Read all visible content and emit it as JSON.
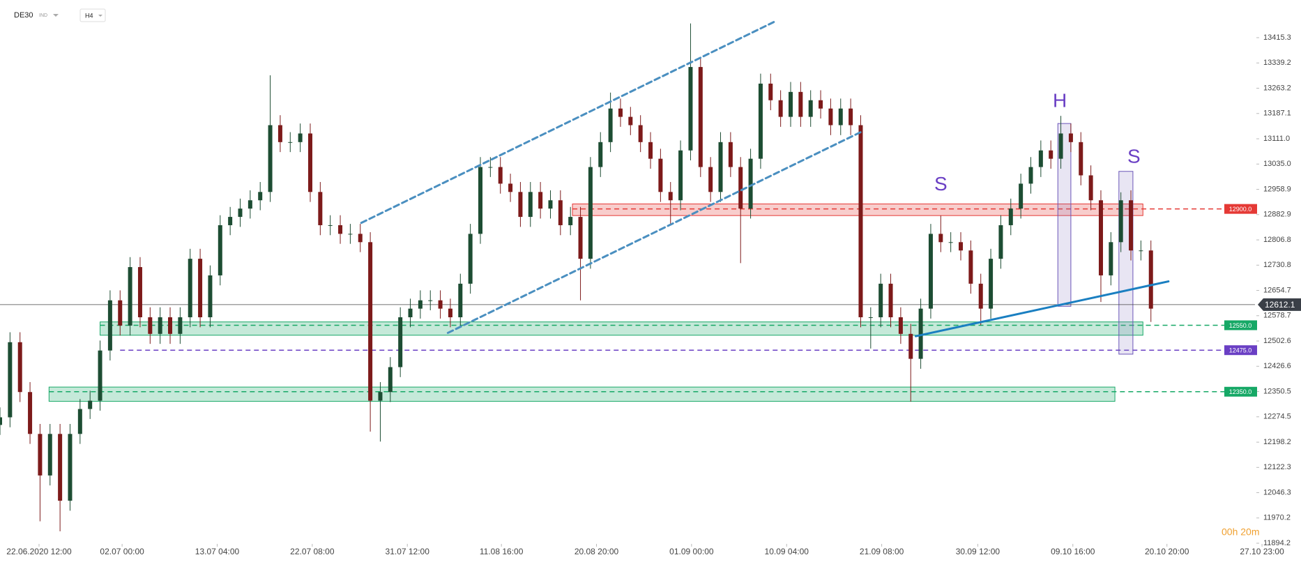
{
  "header": {
    "symbol": "DE30",
    "type": "IND",
    "timeframe": "H4",
    "timer": "00h 20m"
  },
  "chart_data": {
    "type": "candlestick",
    "xlim": [
      0,
      127
    ],
    "ylim": [
      11892.2,
      13528.6
    ],
    "xticks": [
      {
        "value": 3.9,
        "label": "22.06.2020 12:00"
      },
      {
        "value": 12.2,
        "label": "02.07 00:00"
      },
      {
        "value": 21.7,
        "label": "13.07 04:00"
      },
      {
        "value": 31.2,
        "label": "22.07 08:00"
      },
      {
        "value": 40.7,
        "label": "31.07 12:00"
      },
      {
        "value": 50.1,
        "label": "11.08 16:00"
      },
      {
        "value": 59.6,
        "label": "20.08 20:00"
      },
      {
        "value": 69.1,
        "label": "01.09 00:00"
      },
      {
        "value": 78.6,
        "label": "10.09 04:00"
      },
      {
        "value": 88.1,
        "label": "21.09 08:00"
      },
      {
        "value": 97.7,
        "label": "30.09 12:00"
      },
      {
        "value": 107.2,
        "label": "09.10 16:00"
      },
      {
        "value": 116.6,
        "label": "20.10 20:00"
      },
      {
        "value": 126.1,
        "label": "27.10 23:00"
      }
    ],
    "yticks": [
      13415.3,
      13339.2,
      13263.2,
      13187.1,
      {
        "value": 13111,
        "label": "13111.0"
      },
      {
        "value": 13035,
        "label": "13035.0"
      },
      12958.9,
      12882.9,
      12806.8,
      12730.8,
      12654.7,
      12578.7,
      12502.6,
      12426.6,
      12350.5,
      12274.5,
      12198.2,
      12122.3,
      12046.3,
      11970.2,
      11894.2
    ],
    "open": [
      12250,
      12273,
      12499,
      12349,
      12223,
      12098,
      12223,
      12022,
      12223,
      12298,
      12323,
      12474,
      12625,
      12549,
      12725,
      12574,
      12524,
      12574,
      12524,
      12574,
      12750,
      12574,
      12700,
      12851,
      12876,
      12901,
      12926,
      12951,
      13152,
      13101,
      13101,
      13127,
      12951,
      12851,
      12851,
      12825,
      12825,
      12800,
      12323,
      12349,
      12424,
      12574,
      12600,
      12625,
      12625,
      12600,
      12574,
      12675,
      12825,
      13026,
      13026,
      12976,
      12951,
      12876,
      12951,
      12901,
      12926,
      12851,
      12876,
      12750,
      13026,
      13101,
      13202,
      13177,
      13152,
      13101,
      13051,
      12951,
      12926,
      13076,
      13327,
      13026,
      12951,
      13101,
      13026,
      12901,
      13051,
      13277,
      13227,
      13177,
      13252,
      13177,
      13227,
      13202,
      13152,
      13202,
      13152,
      12574,
      12574,
      12675,
      12574,
      12524,
      12449,
      12600,
      12825,
      12800,
      12800,
      12775,
      12675,
      12600,
      12750,
      12851,
      12901,
      12976,
      13026,
      13076,
      13051,
      13127,
      13101,
      13001,
      12926,
      12700,
      12800,
      12926,
      12775,
      12775
    ],
    "high": [
      12303,
      12529,
      12529,
      12379,
      12253,
      12253,
      12253,
      12253,
      12328,
      12353,
      12504,
      12655,
      12655,
      12755,
      12755,
      12604,
      12604,
      12604,
      12604,
      12780,
      12780,
      12730,
      12881,
      12906,
      12931,
      12956,
      12981,
      13302,
      13182,
      13131,
      13157,
      13157,
      12981,
      12881,
      12881,
      12855,
      12855,
      12830,
      12379,
      12454,
      12604,
      12630,
      12655,
      12655,
      12655,
      12630,
      12705,
      12855,
      13056,
      13056,
      13056,
      13006,
      12981,
      12981,
      12981,
      12956,
      12956,
      12906,
      12906,
      13056,
      13131,
      13250,
      13232,
      13207,
      13182,
      13131,
      13081,
      12981,
      13106,
      13458,
      13357,
      13056,
      13131,
      13131,
      13056,
      13081,
      13307,
      13307,
      13257,
      13282,
      13282,
      13257,
      13257,
      13232,
      13232,
      13232,
      13182,
      12604,
      12705,
      12705,
      12604,
      12554,
      12630,
      12855,
      12880,
      12830,
      12830,
      12805,
      12705,
      12780,
      12881,
      12931,
      13006,
      13056,
      13106,
      13106,
      13180,
      13157,
      13131,
      13031,
      12956,
      12830,
      12950,
      12956,
      12805,
      12805
    ],
    "low": [
      12220,
      12243,
      12319,
      12193,
      11960,
      12068,
      11930,
      11992,
      12193,
      12268,
      12293,
      12444,
      12519,
      12519,
      12544,
      12494,
      12494,
      12494,
      12494,
      12544,
      12544,
      12544,
      12670,
      12821,
      12846,
      12871,
      12896,
      12921,
      13071,
      13071,
      13071,
      12921,
      12821,
      12821,
      12795,
      12795,
      12770,
      12230,
      12200,
      12319,
      12394,
      12544,
      12570,
      12595,
      12570,
      12544,
      12544,
      12645,
      12795,
      12996,
      12946,
      12921,
      12846,
      12846,
      12871,
      12871,
      12821,
      12821,
      12625,
      12720,
      12996,
      13071,
      13147,
      13122,
      13071,
      13021,
      12921,
      12850,
      12896,
      13046,
      12996,
      12921,
      12921,
      12996,
      12737,
      12871,
      13021,
      13197,
      13147,
      13147,
      13147,
      13147,
      13172,
      13122,
      13122,
      13122,
      12544,
      12480,
      12544,
      12544,
      12494,
      12320,
      12419,
      12570,
      12770,
      12770,
      12745,
      12645,
      12550,
      12570,
      12720,
      12821,
      12871,
      12946,
      12996,
      13021,
      13021,
      13071,
      12971,
      12896,
      12620,
      12670,
      12770,
      12745,
      12745,
      12560
    ],
    "close": [
      12273,
      12499,
      12349,
      12223,
      12098,
      12223,
      12022,
      12223,
      12298,
      12323,
      12474,
      12625,
      12549,
      12725,
      12574,
      12524,
      12574,
      12524,
      12574,
      12750,
      12574,
      12700,
      12851,
      12876,
      12901,
      12926,
      12951,
      13152,
      13101,
      13101,
      13127,
      12951,
      12851,
      12851,
      12825,
      12825,
      12800,
      12323,
      12349,
      12424,
      12574,
      12600,
      12625,
      12625,
      12600,
      12574,
      12675,
      12825,
      13026,
      13026,
      12976,
      12951,
      12876,
      12951,
      12901,
      12926,
      12851,
      12876,
      12750,
      13026,
      13101,
      13202,
      13177,
      13152,
      13101,
      13051,
      12951,
      12926,
      13076,
      13327,
      13026,
      12951,
      13101,
      13026,
      12901,
      13051,
      13277,
      13227,
      13177,
      13252,
      13177,
      13227,
      13202,
      13152,
      13202,
      13152,
      12574,
      12574,
      12675,
      12574,
      12524,
      12449,
      12600,
      12825,
      12800,
      12800,
      12775,
      12675,
      12600,
      12750,
      12851,
      12901,
      12976,
      13026,
      13076,
      13051,
      13127,
      13101,
      13001,
      12926,
      12700,
      12800,
      12926,
      12775,
      12775,
      12600
    ],
    "colors": {
      "up": "#1d4d33",
      "down": "#7d1a1a"
    },
    "last_price": 12612.1,
    "levels": [
      {
        "value": 12900,
        "label": "12900.0",
        "color": "#e53935",
        "zone": [
          12880,
          12915
        ],
        "from": 57.2,
        "to": 114.2
      },
      {
        "value": 12550,
        "label": "12550.0",
        "color": "#16a866",
        "zone": [
          12520,
          12560
        ],
        "from": 10,
        "to": 114.2
      },
      {
        "value": 12475,
        "label": "12475.0",
        "color": "#6a3fc4",
        "from": 12
      },
      {
        "value": 12350,
        "label": "12350.0",
        "color": "#16a866",
        "zone": [
          12321,
          12364
        ],
        "from": 4.9,
        "to": 111.4
      }
    ],
    "trendlines": [
      {
        "x": [
          36.1,
          77.5
        ],
        "y": [
          12858,
          13465
        ],
        "dashed": true,
        "color": "#4a8fc0"
      },
      {
        "x": [
          44.75,
          86.2
        ],
        "y": [
          12527,
          13134
        ],
        "dashed": true,
        "color": "#4a8fc0"
      },
      {
        "x": [
          91.5,
          116.75
        ],
        "y": [
          12517,
          12682
        ],
        "dashed": false,
        "color": "#1a7fc1"
      }
    ],
    "boxes": [
      {
        "x": [
          105.7,
          107
        ],
        "y": [
          12607,
          13157
        ]
      },
      {
        "x": [
          111.8,
          113.2
        ],
        "y": [
          12463,
          13013
        ]
      }
    ],
    "annotations": [
      {
        "text": "S",
        "x": 94,
        "y": 12971
      },
      {
        "text": "H",
        "x": 105.9,
        "y": 13222
      },
      {
        "text": "S",
        "x": 113.3,
        "y": 13054
      }
    ]
  }
}
